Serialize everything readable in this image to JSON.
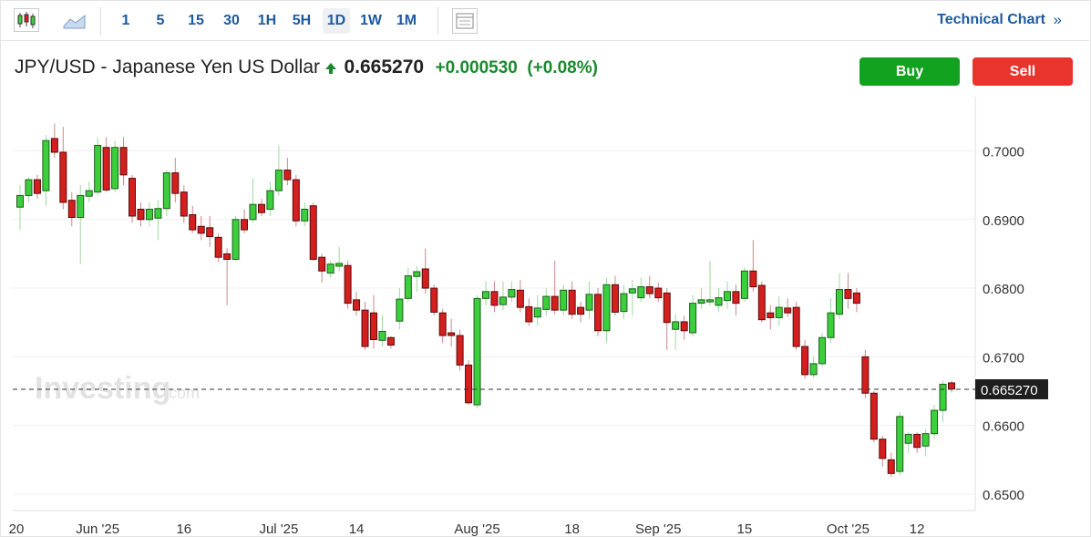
{
  "toolbar": {
    "intervals": [
      "1",
      "5",
      "15",
      "30",
      "1H",
      "5H",
      "1D",
      "1W",
      "1M"
    ],
    "active": "1D",
    "link": "Technical Chart",
    "link_arrow": "»"
  },
  "header": {
    "title": "JPY/USD - Japanese Yen US Dollar",
    "price": "0.665270",
    "change": "+0.000530",
    "change_pct": "(+0.08%)"
  },
  "buttons": {
    "buy": "Buy",
    "sell": "Sell"
  },
  "watermark": {
    "brand": "Investing",
    "suffix": ".com"
  },
  "chart_data": {
    "type": "candlestick",
    "up_color": "#3ccf3c",
    "down_color": "#d41f1f",
    "up_outline": "#1d5e1d",
    "down_outline": "#5a0a0a",
    "grid": true,
    "categories": [
      "20",
      null,
      null,
      null,
      null,
      null,
      null,
      null,
      null,
      "Jun '25",
      null,
      null,
      null,
      null,
      null,
      null,
      null,
      null,
      null,
      "16",
      null,
      null,
      null,
      null,
      null,
      null,
      null,
      null,
      null,
      null,
      "Jul '25",
      null,
      null,
      null,
      null,
      null,
      null,
      null,
      null,
      "14",
      null,
      null,
      null,
      null,
      null,
      null,
      null,
      null,
      null,
      null,
      null,
      null,
      null,
      "Aug '25",
      null,
      null,
      null,
      null,
      null,
      null,
      null,
      null,
      null,
      null,
      "18",
      null,
      null,
      null,
      null,
      null,
      null,
      null,
      null,
      null,
      "Sep '25",
      null,
      null,
      null,
      null,
      null,
      null,
      null,
      null,
      null,
      "15",
      null,
      null,
      null,
      null,
      null,
      null,
      null,
      null,
      null,
      null,
      null,
      "Oct '25",
      null,
      null,
      null,
      null,
      null,
      null,
      null,
      "12",
      null,
      null,
      null,
      null
    ],
    "open": [
      0.6918,
      0.6935,
      0.6958,
      0.6942,
      0.7018,
      0.6998,
      0.6928,
      0.6903,
      0.6934,
      0.694,
      0.7005,
      0.6945,
      0.7005,
      0.696,
      0.6915,
      0.69,
      0.6902,
      0.6916,
      0.6968,
      0.694,
      0.6907,
      0.689,
      0.6888,
      0.6874,
      0.685,
      0.6842,
      0.69,
      0.69,
      0.6922,
      0.6915,
      0.6942,
      0.6972,
      0.6958,
      0.6898,
      0.692,
      0.6845,
      0.6822,
      0.6832,
      0.6833,
      0.6783,
      0.6768,
      0.6764,
      0.6724,
      0.6728,
      0.6752,
      0.6785,
      0.6817,
      0.6828,
      0.68,
      0.6764,
      0.6735,
      0.6731,
      0.6688,
      0.663,
      0.6785,
      0.6795,
      0.6776,
      0.6787,
      0.6797,
      0.6773,
      0.6758,
      0.6769,
      0.6788,
      0.6768,
      0.6797,
      0.6772,
      0.6768,
      0.6791,
      0.6738,
      0.6805,
      0.6766,
      0.6793,
      0.6786,
      0.6802,
      0.68,
      0.6793,
      0.674,
      0.6751,
      0.6735,
      0.6778,
      0.678,
      0.6775,
      0.6782,
      0.6795,
      0.6785,
      0.6825,
      0.6804,
      0.6764,
      0.6757,
      0.6771,
      0.6772,
      0.6715,
      0.6674,
      0.669,
      0.6728,
      0.6762,
      0.6798,
      0.6793,
      0.67,
      0.6647,
      0.658,
      0.655,
      0.6533,
      0.6574,
      0.6587,
      0.657,
      0.6588,
      0.6622,
      0.6662
    ],
    "high": [
      0.695,
      0.6962,
      0.6965,
      0.7023,
      0.704,
      0.7035,
      0.694,
      0.695,
      0.6955,
      0.702,
      0.702,
      0.7015,
      0.702,
      0.6965,
      0.6925,
      0.6925,
      0.6928,
      0.6972,
      0.699,
      0.695,
      0.692,
      0.6905,
      0.6905,
      0.688,
      0.6858,
      0.6905,
      0.6915,
      0.696,
      0.693,
      0.6955,
      0.7008,
      0.699,
      0.6965,
      0.6925,
      0.6925,
      0.685,
      0.684,
      0.686,
      0.684,
      0.6795,
      0.678,
      0.679,
      0.676,
      0.673,
      0.68,
      0.683,
      0.6832,
      0.6858,
      0.6805,
      0.677,
      0.6755,
      0.674,
      0.6695,
      0.679,
      0.681,
      0.681,
      0.681,
      0.681,
      0.6812,
      0.6785,
      0.679,
      0.68,
      0.684,
      0.6805,
      0.681,
      0.678,
      0.681,
      0.68,
      0.6815,
      0.6818,
      0.6805,
      0.6812,
      0.6815,
      0.6818,
      0.6808,
      0.68,
      0.6762,
      0.676,
      0.679,
      0.68,
      0.684,
      0.68,
      0.681,
      0.6805,
      0.683,
      0.687,
      0.681,
      0.6775,
      0.6788,
      0.6785,
      0.678,
      0.6725,
      0.67,
      0.6735,
      0.6785,
      0.6822,
      0.6822,
      0.68,
      0.671,
      0.665,
      0.6585,
      0.656,
      0.662,
      0.659,
      0.659,
      0.6595,
      0.663,
      0.6665,
      0.6665
    ],
    "low": [
      0.6885,
      0.6925,
      0.693,
      0.692,
      0.699,
      0.6915,
      0.689,
      0.6835,
      0.6925,
      0.6935,
      0.694,
      0.694,
      0.695,
      0.6895,
      0.689,
      0.689,
      0.687,
      0.6905,
      0.6925,
      0.6895,
      0.688,
      0.687,
      0.686,
      0.6838,
      0.6775,
      0.684,
      0.688,
      0.6895,
      0.6905,
      0.6905,
      0.6935,
      0.695,
      0.689,
      0.689,
      0.684,
      0.6808,
      0.6815,
      0.6825,
      0.677,
      0.676,
      0.671,
      0.6712,
      0.6715,
      0.6712,
      0.674,
      0.678,
      0.6795,
      0.6792,
      0.676,
      0.672,
      0.6715,
      0.668,
      0.663,
      0.6625,
      0.6775,
      0.6765,
      0.6768,
      0.678,
      0.6765,
      0.6745,
      0.6745,
      0.676,
      0.6762,
      0.676,
      0.6755,
      0.675,
      0.6755,
      0.673,
      0.672,
      0.676,
      0.6755,
      0.676,
      0.678,
      0.6785,
      0.678,
      0.671,
      0.671,
      0.6725,
      0.673,
      0.677,
      0.6775,
      0.6765,
      0.677,
      0.676,
      0.678,
      0.6795,
      0.675,
      0.674,
      0.6745,
      0.6758,
      0.671,
      0.6668,
      0.667,
      0.6685,
      0.672,
      0.6755,
      0.677,
      0.6765,
      0.664,
      0.6575,
      0.654,
      0.6525,
      0.6528,
      0.656,
      0.656,
      0.6555,
      0.658,
      0.6605,
      0.6648
    ],
    "close": [
      0.6935,
      0.6958,
      0.6938,
      0.7015,
      0.6998,
      0.6925,
      0.6903,
      0.6935,
      0.6942,
      0.7008,
      0.6943,
      0.7005,
      0.6965,
      0.6905,
      0.69,
      0.6915,
      0.6916,
      0.6968,
      0.6938,
      0.6905,
      0.6885,
      0.688,
      0.6875,
      0.6845,
      0.6842,
      0.69,
      0.6885,
      0.6922,
      0.691,
      0.6942,
      0.6972,
      0.6958,
      0.6898,
      0.6915,
      0.6842,
      0.6825,
      0.6835,
      0.6836,
      0.6778,
      0.6768,
      0.6715,
      0.6725,
      0.6737,
      0.6717,
      0.6784,
      0.6818,
      0.6824,
      0.68,
      0.6765,
      0.6731,
      0.6731,
      0.6688,
      0.6633,
      0.6785,
      0.6795,
      0.6775,
      0.6787,
      0.6798,
      0.6772,
      0.6751,
      0.6771,
      0.6788,
      0.6768,
      0.6797,
      0.6762,
      0.6762,
      0.6791,
      0.6738,
      0.6805,
      0.6765,
      0.6792,
      0.6799,
      0.6802,
      0.6792,
      0.6786,
      0.675,
      0.6751,
      0.6738,
      0.6778,
      0.6783,
      0.6783,
      0.6786,
      0.6795,
      0.6778,
      0.6825,
      0.6802,
      0.6754,
      0.6757,
      0.6772,
      0.6764,
      0.6715,
      0.6674,
      0.669,
      0.6728,
      0.6764,
      0.6798,
      0.6785,
      0.6778,
      0.6647,
      0.658,
      0.6552,
      0.653,
      0.6613,
      0.6587,
      0.6568,
      0.6588,
      0.6622,
      0.666,
      0.6653
    ],
    "ylim": [
      0.6476,
      0.7079
    ],
    "yticks": [
      {
        "value": 0.65,
        "label": "0.6500"
      },
      {
        "value": 0.66,
        "label": "0.6600"
      },
      {
        "value": 0.67,
        "label": "0.6700"
      },
      {
        "value": 0.68,
        "label": "0.6800"
      },
      {
        "value": 0.69,
        "label": "0.6900"
      },
      {
        "value": 0.7,
        "label": "0.7000"
      }
    ],
    "last_price": {
      "value": 0.66527,
      "label": "0.665270"
    }
  }
}
